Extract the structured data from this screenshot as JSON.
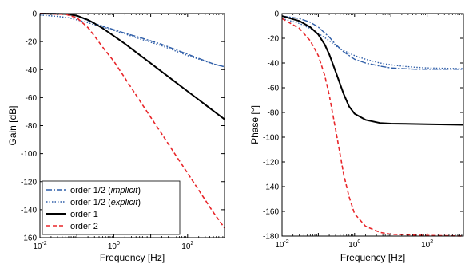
{
  "chart_data": [
    {
      "type": "line",
      "xlabel": "Frequency [Hz]",
      "ylabel": "Gain [dB]",
      "x_scale": "log",
      "xlim": [
        0.01,
        1000
      ],
      "ylim": [
        -160,
        0
      ],
      "x_ticks": [
        {
          "value": 0.01,
          "base": "10",
          "exp": "-2"
        },
        {
          "value": 1,
          "base": "10",
          "exp": "0"
        },
        {
          "value": 100,
          "base": "10",
          "exp": "2"
        }
      ],
      "y_ticks": [
        0,
        -20,
        -40,
        -60,
        -80,
        -100,
        -120,
        -140,
        -160
      ],
      "grid": false,
      "legend": {
        "position": "bottom-left",
        "entries": [
          {
            "parts": [
              {
                "text": "order 1/2 (",
                "italic": false
              },
              {
                "text": "implicit",
                "italic": true
              },
              {
                "text": ")",
                "italic": false
              }
            ],
            "series": 0
          },
          {
            "parts": [
              {
                "text": "order 1/2 (",
                "italic": false
              },
              {
                "text": "explicit",
                "italic": true
              },
              {
                "text": ")",
                "italic": false
              }
            ],
            "series": 1
          },
          {
            "parts": [
              {
                "text": "order 1",
                "italic": false
              }
            ],
            "series": 2
          },
          {
            "parts": [
              {
                "text": "order 2",
                "italic": false
              }
            ],
            "series": 3
          }
        ]
      },
      "series": [
        {
          "name": "order 1/2 (implicit)",
          "color": "#2f5ea8",
          "dash": "7 2 2 2",
          "width": 1.4,
          "x": [
            0.01,
            0.03,
            0.06,
            0.1,
            0.2,
            0.3,
            0.5,
            1,
            2,
            5,
            10,
            20,
            50,
            100,
            200,
            500,
            1000
          ],
          "y": [
            0,
            0,
            -0.3,
            -1.5,
            -5,
            -7,
            -9,
            -11.5,
            -14,
            -17,
            -19.5,
            -22,
            -26,
            -29,
            -32,
            -36,
            -38
          ]
        },
        {
          "name": "order 1/2 (explicit)",
          "color": "#2f5ea8",
          "dash": "1.5 2",
          "width": 1.4,
          "x": [
            0.01,
            0.03,
            0.06,
            0.1,
            0.2,
            0.3,
            0.5,
            1,
            2,
            5,
            10,
            20,
            50,
            100,
            200,
            500,
            1000
          ],
          "y": [
            -1,
            -2,
            -3,
            -4.5,
            -6.5,
            -8,
            -9.5,
            -12,
            -14.5,
            -18,
            -20.5,
            -23,
            -27,
            -30,
            -32.5,
            -36,
            -38
          ]
        },
        {
          "name": "order 1",
          "color": "#000000",
          "dash": "",
          "width": 2,
          "x": [
            0.01,
            0.05,
            0.1,
            0.2,
            0.3,
            0.5,
            1,
            2,
            5,
            10,
            20,
            50,
            100,
            200,
            500,
            1000
          ],
          "y": [
            0,
            -0.3,
            -1.5,
            -4.5,
            -7,
            -10.5,
            -16,
            -21.5,
            -29.5,
            -35.5,
            -41.5,
            -49.5,
            -55.5,
            -61.5,
            -69.5,
            -75.5
          ]
        },
        {
          "name": "order 2",
          "color": "#e8262a",
          "dash": "5 3",
          "width": 1.6,
          "x": [
            0.01,
            0.05,
            0.1,
            0.2,
            0.3,
            0.5,
            1,
            2,
            5,
            10,
            20,
            50,
            100,
            200,
            500,
            1000
          ],
          "y": [
            0,
            -0.5,
            -3,
            -10,
            -16,
            -24,
            -34,
            -46,
            -62,
            -74,
            -86,
            -102,
            -114,
            -126,
            -142,
            -153
          ]
        }
      ]
    },
    {
      "type": "line",
      "xlabel": "Frequency [Hz]",
      "ylabel": "Phase [°]",
      "x_scale": "log",
      "xlim": [
        0.01,
        1000
      ],
      "ylim": [
        -180,
        0
      ],
      "x_ticks": [
        {
          "value": 0.01,
          "base": "10",
          "exp": "-2"
        },
        {
          "value": 1,
          "base": "10",
          "exp": "0"
        },
        {
          "value": 100,
          "base": "10",
          "exp": "2"
        }
      ],
      "y_ticks": [
        0,
        -20,
        -40,
        -60,
        -80,
        -100,
        -120,
        -140,
        -160,
        -180
      ],
      "grid": false,
      "series": [
        {
          "name": "order 1/2 (implicit)",
          "color": "#2f5ea8",
          "dash": "7 2 2 2",
          "width": 1.4,
          "x": [
            0.01,
            0.03,
            0.06,
            0.1,
            0.2,
            0.3,
            0.5,
            1,
            2,
            5,
            10,
            20,
            50,
            100,
            1000
          ],
          "y": [
            -2,
            -4,
            -7,
            -11,
            -19,
            -25,
            -31,
            -37,
            -40,
            -42.5,
            -44,
            -44.5,
            -45,
            -45,
            -45
          ]
        },
        {
          "name": "order 1/2 (explicit)",
          "color": "#2f5ea8",
          "dash": "1.5 2",
          "width": 1.4,
          "x": [
            0.01,
            0.03,
            0.06,
            0.1,
            0.2,
            0.3,
            0.5,
            1,
            2,
            5,
            10,
            20,
            50,
            100,
            1000
          ],
          "y": [
            -4,
            -8,
            -12,
            -16,
            -22,
            -26,
            -30,
            -34,
            -37,
            -40,
            -41.5,
            -42.5,
            -43.5,
            -44,
            -44.5
          ]
        },
        {
          "name": "order 1",
          "color": "#000000",
          "dash": "",
          "width": 2,
          "x": [
            0.01,
            0.03,
            0.06,
            0.1,
            0.15,
            0.2,
            0.3,
            0.5,
            0.7,
            1,
            2,
            5,
            10,
            100,
            1000
          ],
          "y": [
            -2,
            -6,
            -11,
            -17,
            -25,
            -33,
            -47,
            -65,
            -75,
            -81,
            -86,
            -88.5,
            -89,
            -89.5,
            -90
          ]
        },
        {
          "name": "order 2",
          "color": "#e8262a",
          "dash": "5 3",
          "width": 1.6,
          "x": [
            0.01,
            0.03,
            0.06,
            0.1,
            0.15,
            0.2,
            0.3,
            0.4,
            0.5,
            0.7,
            1,
            2,
            5,
            10,
            100,
            1000
          ],
          "y": [
            -4,
            -12,
            -22,
            -34,
            -50,
            -66,
            -94,
            -114,
            -130,
            -148,
            -162,
            -172,
            -177,
            -178.5,
            -179.5,
            -180
          ]
        }
      ]
    }
  ]
}
